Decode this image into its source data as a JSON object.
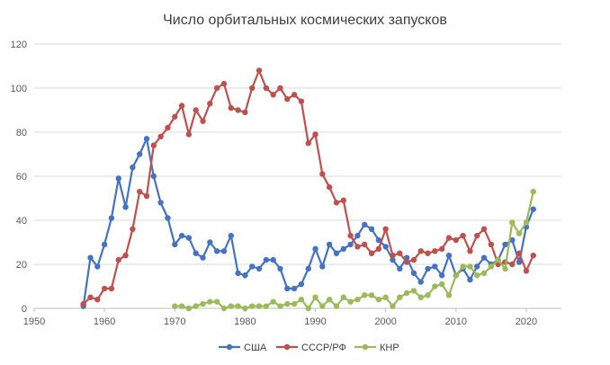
{
  "chart_data": {
    "type": "line",
    "title": "Число орбитальных космических запусков",
    "xlabel": "",
    "ylabel": "",
    "xlim": [
      1950,
      2025
    ],
    "ylim": [
      0,
      120
    ],
    "x_ticks": [
      1950,
      1960,
      1970,
      1980,
      1990,
      2000,
      2010,
      2020
    ],
    "y_ticks": [
      0,
      20,
      40,
      60,
      80,
      100,
      120
    ],
    "grid": "horizontal",
    "legend_position": "bottom",
    "series": [
      {
        "name": "США",
        "color": "#4472C4",
        "x": [
          1957,
          1958,
          1959,
          1960,
          1961,
          1962,
          1963,
          1964,
          1965,
          1966,
          1967,
          1968,
          1969,
          1970,
          1971,
          1972,
          1973,
          1974,
          1975,
          1976,
          1977,
          1978,
          1979,
          1980,
          1981,
          1982,
          1983,
          1984,
          1985,
          1986,
          1987,
          1988,
          1989,
          1990,
          1991,
          1992,
          1993,
          1994,
          1995,
          1996,
          1997,
          1998,
          1999,
          2000,
          2001,
          2002,
          2003,
          2004,
          2005,
          2006,
          2007,
          2008,
          2009,
          2010,
          2011,
          2012,
          2013,
          2014,
          2015,
          2016,
          2017,
          2018,
          2019,
          2020,
          2021
        ],
        "values": [
          1,
          23,
          19,
          29,
          41,
          59,
          46,
          64,
          70,
          77,
          60,
          48,
          41,
          29,
          33,
          32,
          25,
          23,
          30,
          26,
          26,
          33,
          16,
          15,
          19,
          18,
          22,
          22,
          18,
          9,
          9,
          11,
          18,
          27,
          19,
          29,
          25,
          27,
          29,
          33,
          38,
          36,
          31,
          28,
          22,
          18,
          23,
          16,
          12,
          18,
          19,
          15,
          24,
          15,
          18,
          13,
          19,
          23,
          20,
          22,
          29,
          31,
          21,
          37,
          45
        ]
      },
      {
        "name": "СССР/РФ",
        "color": "#C0504D",
        "x": [
          1957,
          1958,
          1959,
          1960,
          1961,
          1962,
          1963,
          1964,
          1965,
          1966,
          1967,
          1968,
          1969,
          1970,
          1971,
          1972,
          1973,
          1974,
          1975,
          1976,
          1977,
          1978,
          1979,
          1980,
          1981,
          1982,
          1983,
          1984,
          1985,
          1986,
          1987,
          1988,
          1989,
          1990,
          1991,
          1992,
          1993,
          1994,
          1995,
          1996,
          1997,
          1998,
          1999,
          2000,
          2001,
          2002,
          2003,
          2004,
          2005,
          2006,
          2007,
          2008,
          2009,
          2010,
          2011,
          2012,
          2013,
          2014,
          2015,
          2016,
          2017,
          2018,
          2019,
          2020,
          2021
        ],
        "values": [
          2,
          5,
          4,
          9,
          9,
          22,
          24,
          36,
          53,
          51,
          74,
          78,
          82,
          87,
          92,
          79,
          90,
          85,
          93,
          100,
          102,
          91,
          90,
          89,
          100,
          108,
          100,
          97,
          100,
          95,
          97,
          94,
          75,
          79,
          61,
          55,
          48,
          49,
          33,
          28,
          29,
          25,
          27,
          36,
          24,
          25,
          21,
          22,
          26,
          25,
          26,
          27,
          32,
          31,
          33,
          26,
          33,
          36,
          29,
          20,
          21,
          20,
          25,
          17,
          24
        ]
      },
      {
        "name": "КНР",
        "color": "#9BBB59",
        "x": [
          1970,
          1971,
          1972,
          1973,
          1974,
          1975,
          1976,
          1977,
          1978,
          1979,
          1980,
          1981,
          1982,
          1983,
          1984,
          1985,
          1986,
          1987,
          1988,
          1989,
          1990,
          1991,
          1992,
          1993,
          1994,
          1995,
          1996,
          1997,
          1998,
          1999,
          2000,
          2001,
          2002,
          2003,
          2004,
          2005,
          2006,
          2007,
          2008,
          2009,
          2010,
          2011,
          2012,
          2013,
          2014,
          2015,
          2016,
          2017,
          2018,
          2019,
          2020,
          2021
        ],
        "values": [
          1,
          1,
          0,
          1,
          2,
          3,
          3,
          0,
          1,
          1,
          0,
          1,
          1,
          1,
          3,
          1,
          2,
          2,
          4,
          0,
          5,
          1,
          4,
          1,
          5,
          3,
          4,
          6,
          6,
          4,
          5,
          1,
          5,
          7,
          8,
          5,
          6,
          10,
          11,
          6,
          15,
          19,
          19,
          15,
          16,
          19,
          22,
          18,
          39,
          34,
          39,
          53
        ]
      }
    ]
  }
}
